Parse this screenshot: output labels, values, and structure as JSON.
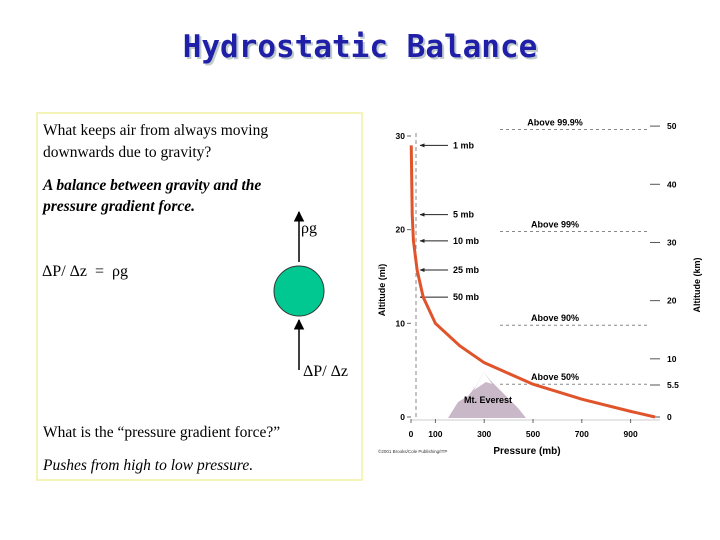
{
  "title": "Hydrostatic Balance",
  "box": {
    "question1": [
      "What keeps air from always moving",
      "downwards due to gravity?"
    ],
    "answer1": [
      "A balance between gravity and the",
      "pressure gradient force."
    ],
    "down_force_label": "ρg",
    "equation": "ΔP/ Δz  =  ρg",
    "up_force_label": "ΔP/ Δz",
    "question2": "What is the “pressure gradient force?”",
    "answer2": "Pushes from high to low pressure."
  },
  "chart_data": {
    "type": "line",
    "x_label": "Pressure  (mb)",
    "y_label": "Altitude (mi)",
    "y2_label": "Altitude (km)",
    "credit": "©2001 Brooks/Cole Publishing/ITP",
    "landmark": "Mt. Everest",
    "xlim": [
      0,
      1000
    ],
    "xticks": [
      0,
      100,
      300,
      500,
      700,
      900
    ],
    "ylim": [
      0,
      30
    ],
    "yticks": [
      0,
      10,
      20,
      30
    ],
    "y2lim": [
      0,
      48.3
    ],
    "y2ticks": [
      0,
      5.5,
      10,
      20,
      30,
      40,
      50
    ],
    "color": "#e0542c",
    "x": [
      1,
      5,
      10,
      25,
      50,
      100,
      200,
      300,
      500,
      700,
      900,
      1000
    ],
    "values": [
      29,
      21.6,
      18.8,
      15.7,
      12.8,
      10,
      7.6,
      5.8,
      3.5,
      1.9,
      0.6,
      0
    ],
    "pressure_labels": [
      {
        "text": "1 mb",
        "y": 29
      },
      {
        "text": "5 mb",
        "y": 21.6
      },
      {
        "text": "10 mb",
        "y": 18.8
      },
      {
        "text": "25 mb",
        "y": 15.7
      },
      {
        "text": "50 mb",
        "y": 12.8
      }
    ],
    "mass_labels": [
      {
        "text": "Above 99.9%",
        "y": 30.7
      },
      {
        "text": "Above 99%",
        "y": 19.8
      },
      {
        "text": "Above 90%",
        "y": 9.8
      },
      {
        "text": "Above 50%",
        "y": 3.5
      }
    ]
  }
}
